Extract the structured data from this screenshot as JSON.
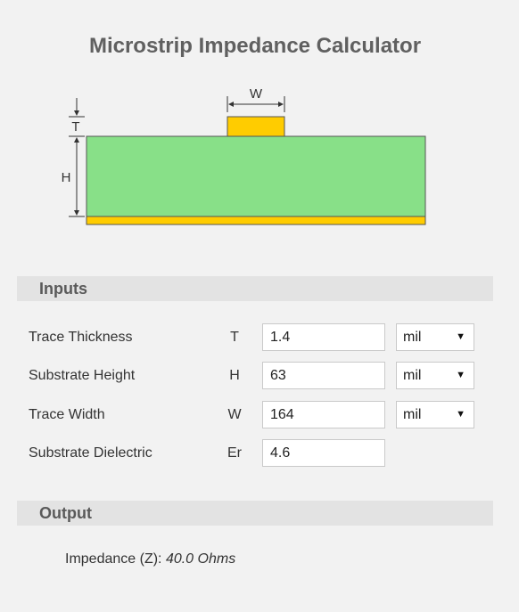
{
  "page": {
    "title": "Microstrip Impedance Calculator"
  },
  "diagram": {
    "label_w": "W",
    "label_t": "T",
    "label_h": "H"
  },
  "inputs": {
    "heading": "Inputs",
    "rows": [
      {
        "label": "Trace Thickness",
        "symbol": "T",
        "value": "1.4",
        "unit": "mil"
      },
      {
        "label": "Substrate Height",
        "symbol": "H",
        "value": "63",
        "unit": "mil"
      },
      {
        "label": "Trace Width",
        "symbol": "W",
        "value": "164",
        "unit": "mil"
      },
      {
        "label": "Substrate Dielectric",
        "symbol": "Er",
        "value": "4.6"
      }
    ]
  },
  "output": {
    "heading": "Output",
    "impedance_label": "Impedance (Z):",
    "impedance_value": "40.0 Ohms"
  },
  "colors": {
    "substrate": "#88e088",
    "copper": "#ffcc00",
    "section_bar": "#e3e3e3",
    "title": "#606060"
  }
}
